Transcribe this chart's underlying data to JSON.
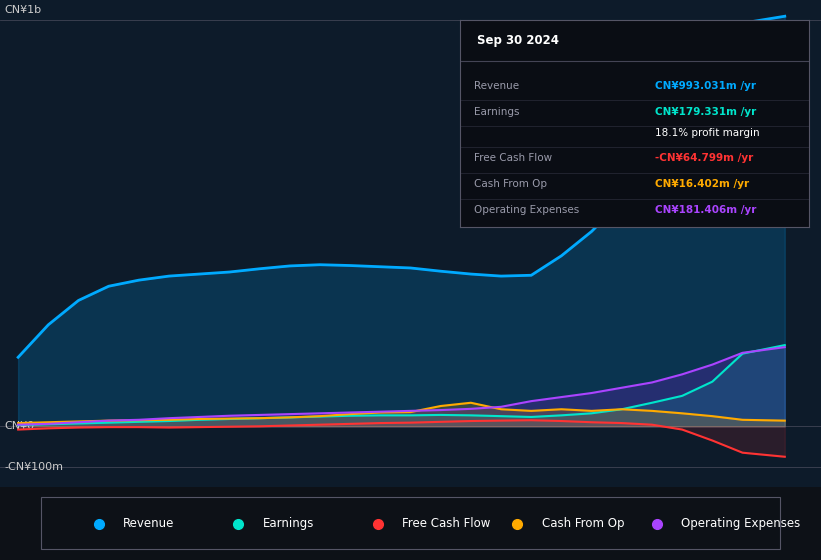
{
  "bg_color": "#0d1117",
  "plot_bg_color": "#0d1b2a",
  "xlim": [
    2018.6,
    2025.4
  ],
  "ylim": [
    -150,
    1050
  ],
  "xticks": [
    2019,
    2020,
    2021,
    2022,
    2023,
    2024
  ],
  "ylabel_top": "CN¥1b",
  "ylabel_mid": "CN¥0",
  "ylabel_bot": "-CN¥100m",
  "y_top": 1000,
  "y_mid": 0,
  "y_bot": -100,
  "revenue": {
    "x": [
      2018.75,
      2019.0,
      2019.25,
      2019.5,
      2019.75,
      2020.0,
      2020.25,
      2020.5,
      2020.75,
      2021.0,
      2021.25,
      2021.5,
      2021.75,
      2022.0,
      2022.25,
      2022.5,
      2022.75,
      2023.0,
      2023.25,
      2023.5,
      2023.75,
      2024.0,
      2024.25,
      2024.5,
      2024.75,
      2025.1
    ],
    "y": [
      170,
      250,
      310,
      345,
      360,
      370,
      375,
      380,
      388,
      395,
      398,
      396,
      393,
      390,
      382,
      375,
      370,
      372,
      420,
      480,
      555,
      645,
      720,
      860,
      993,
      1010
    ],
    "color": "#00aaff",
    "fill_color": "#00aaff",
    "fill_alpha": 0.18,
    "linewidth": 2.0
  },
  "earnings": {
    "x": [
      2018.75,
      2019.0,
      2019.25,
      2019.5,
      2019.75,
      2020.0,
      2020.25,
      2020.5,
      2020.75,
      2021.0,
      2021.25,
      2021.5,
      2021.75,
      2022.0,
      2022.25,
      2022.5,
      2022.75,
      2023.0,
      2023.25,
      2023.5,
      2023.75,
      2024.0,
      2024.25,
      2024.5,
      2024.75,
      2025.1
    ],
    "y": [
      3,
      5,
      7,
      9,
      11,
      13,
      16,
      18,
      20,
      22,
      24,
      26,
      27,
      27,
      28,
      27,
      25,
      23,
      27,
      32,
      42,
      58,
      75,
      110,
      179,
      200
    ],
    "color": "#00e5cc",
    "fill_color": "#00ccaa",
    "fill_alpha": 0.15,
    "linewidth": 1.5
  },
  "free_cash_flow": {
    "x": [
      2018.75,
      2019.0,
      2019.25,
      2019.5,
      2019.75,
      2020.0,
      2020.25,
      2020.5,
      2020.75,
      2021.0,
      2021.25,
      2021.5,
      2021.75,
      2022.0,
      2022.25,
      2022.5,
      2022.75,
      2023.0,
      2023.25,
      2023.5,
      2023.75,
      2024.0,
      2024.25,
      2024.5,
      2024.75,
      2025.1
    ],
    "y": [
      -8,
      -5,
      -3,
      -2,
      -2,
      -3,
      -2,
      -1,
      0,
      2,
      4,
      6,
      8,
      9,
      11,
      13,
      14,
      15,
      13,
      10,
      8,
      4,
      -8,
      -35,
      -65,
      -75
    ],
    "color": "#ff3333",
    "fill_color": "#ff3333",
    "fill_alpha": 0.12,
    "linewidth": 1.5
  },
  "cash_from_op": {
    "x": [
      2018.75,
      2019.0,
      2019.25,
      2019.5,
      2019.75,
      2020.0,
      2020.25,
      2020.5,
      2020.75,
      2021.0,
      2021.25,
      2021.5,
      2021.75,
      2022.0,
      2022.25,
      2022.5,
      2022.75,
      2023.0,
      2023.25,
      2023.5,
      2023.75,
      2024.0,
      2024.25,
      2024.5,
      2024.75,
      2025.1
    ],
    "y": [
      8,
      10,
      12,
      14,
      15,
      16,
      18,
      19,
      20,
      22,
      25,
      30,
      34,
      35,
      50,
      58,
      42,
      38,
      42,
      38,
      42,
      38,
      32,
      25,
      16,
      14
    ],
    "color": "#ffaa00",
    "fill_color": "#ffaa00",
    "fill_alpha": 0.18,
    "linewidth": 1.5
  },
  "operating_expenses": {
    "x": [
      2018.75,
      2019.0,
      2019.25,
      2019.5,
      2019.75,
      2020.0,
      2020.25,
      2020.5,
      2020.75,
      2021.0,
      2021.25,
      2021.5,
      2021.75,
      2022.0,
      2022.25,
      2022.5,
      2022.75,
      2023.0,
      2023.25,
      2023.5,
      2023.75,
      2024.0,
      2024.25,
      2024.5,
      2024.75,
      2025.1
    ],
    "y": [
      4,
      6,
      10,
      14,
      16,
      20,
      23,
      26,
      28,
      30,
      32,
      34,
      36,
      38,
      40,
      43,
      48,
      62,
      72,
      82,
      95,
      108,
      128,
      152,
      181,
      195
    ],
    "color": "#aa44ff",
    "fill_color": "#6622bb",
    "fill_alpha": 0.3,
    "linewidth": 1.5
  },
  "legend_items": [
    {
      "label": "Revenue",
      "color": "#00aaff"
    },
    {
      "label": "Earnings",
      "color": "#00e5cc"
    },
    {
      "label": "Free Cash Flow",
      "color": "#ff3333"
    },
    {
      "label": "Cash From Op",
      "color": "#ffaa00"
    },
    {
      "label": "Operating Expenses",
      "color": "#aa44ff"
    }
  ],
  "tooltip": {
    "date": "Sep 30 2024",
    "rows": [
      {
        "label": "Revenue",
        "value": "CN¥993.031m /yr",
        "color": "#00aaff"
      },
      {
        "label": "Earnings",
        "value": "CN¥179.331m /yr",
        "color": "#00e5cc"
      },
      {
        "label": "",
        "value": "18.1% profit margin",
        "color": "#ffffff"
      },
      {
        "label": "Free Cash Flow",
        "value": "-CN¥64.799m /yr",
        "color": "#ff3333"
      },
      {
        "label": "Cash From Op",
        "value": "CN¥16.402m /yr",
        "color": "#ffaa00"
      },
      {
        "label": "Operating Expenses",
        "value": "CN¥181.406m /yr",
        "color": "#aa44ff"
      }
    ]
  }
}
